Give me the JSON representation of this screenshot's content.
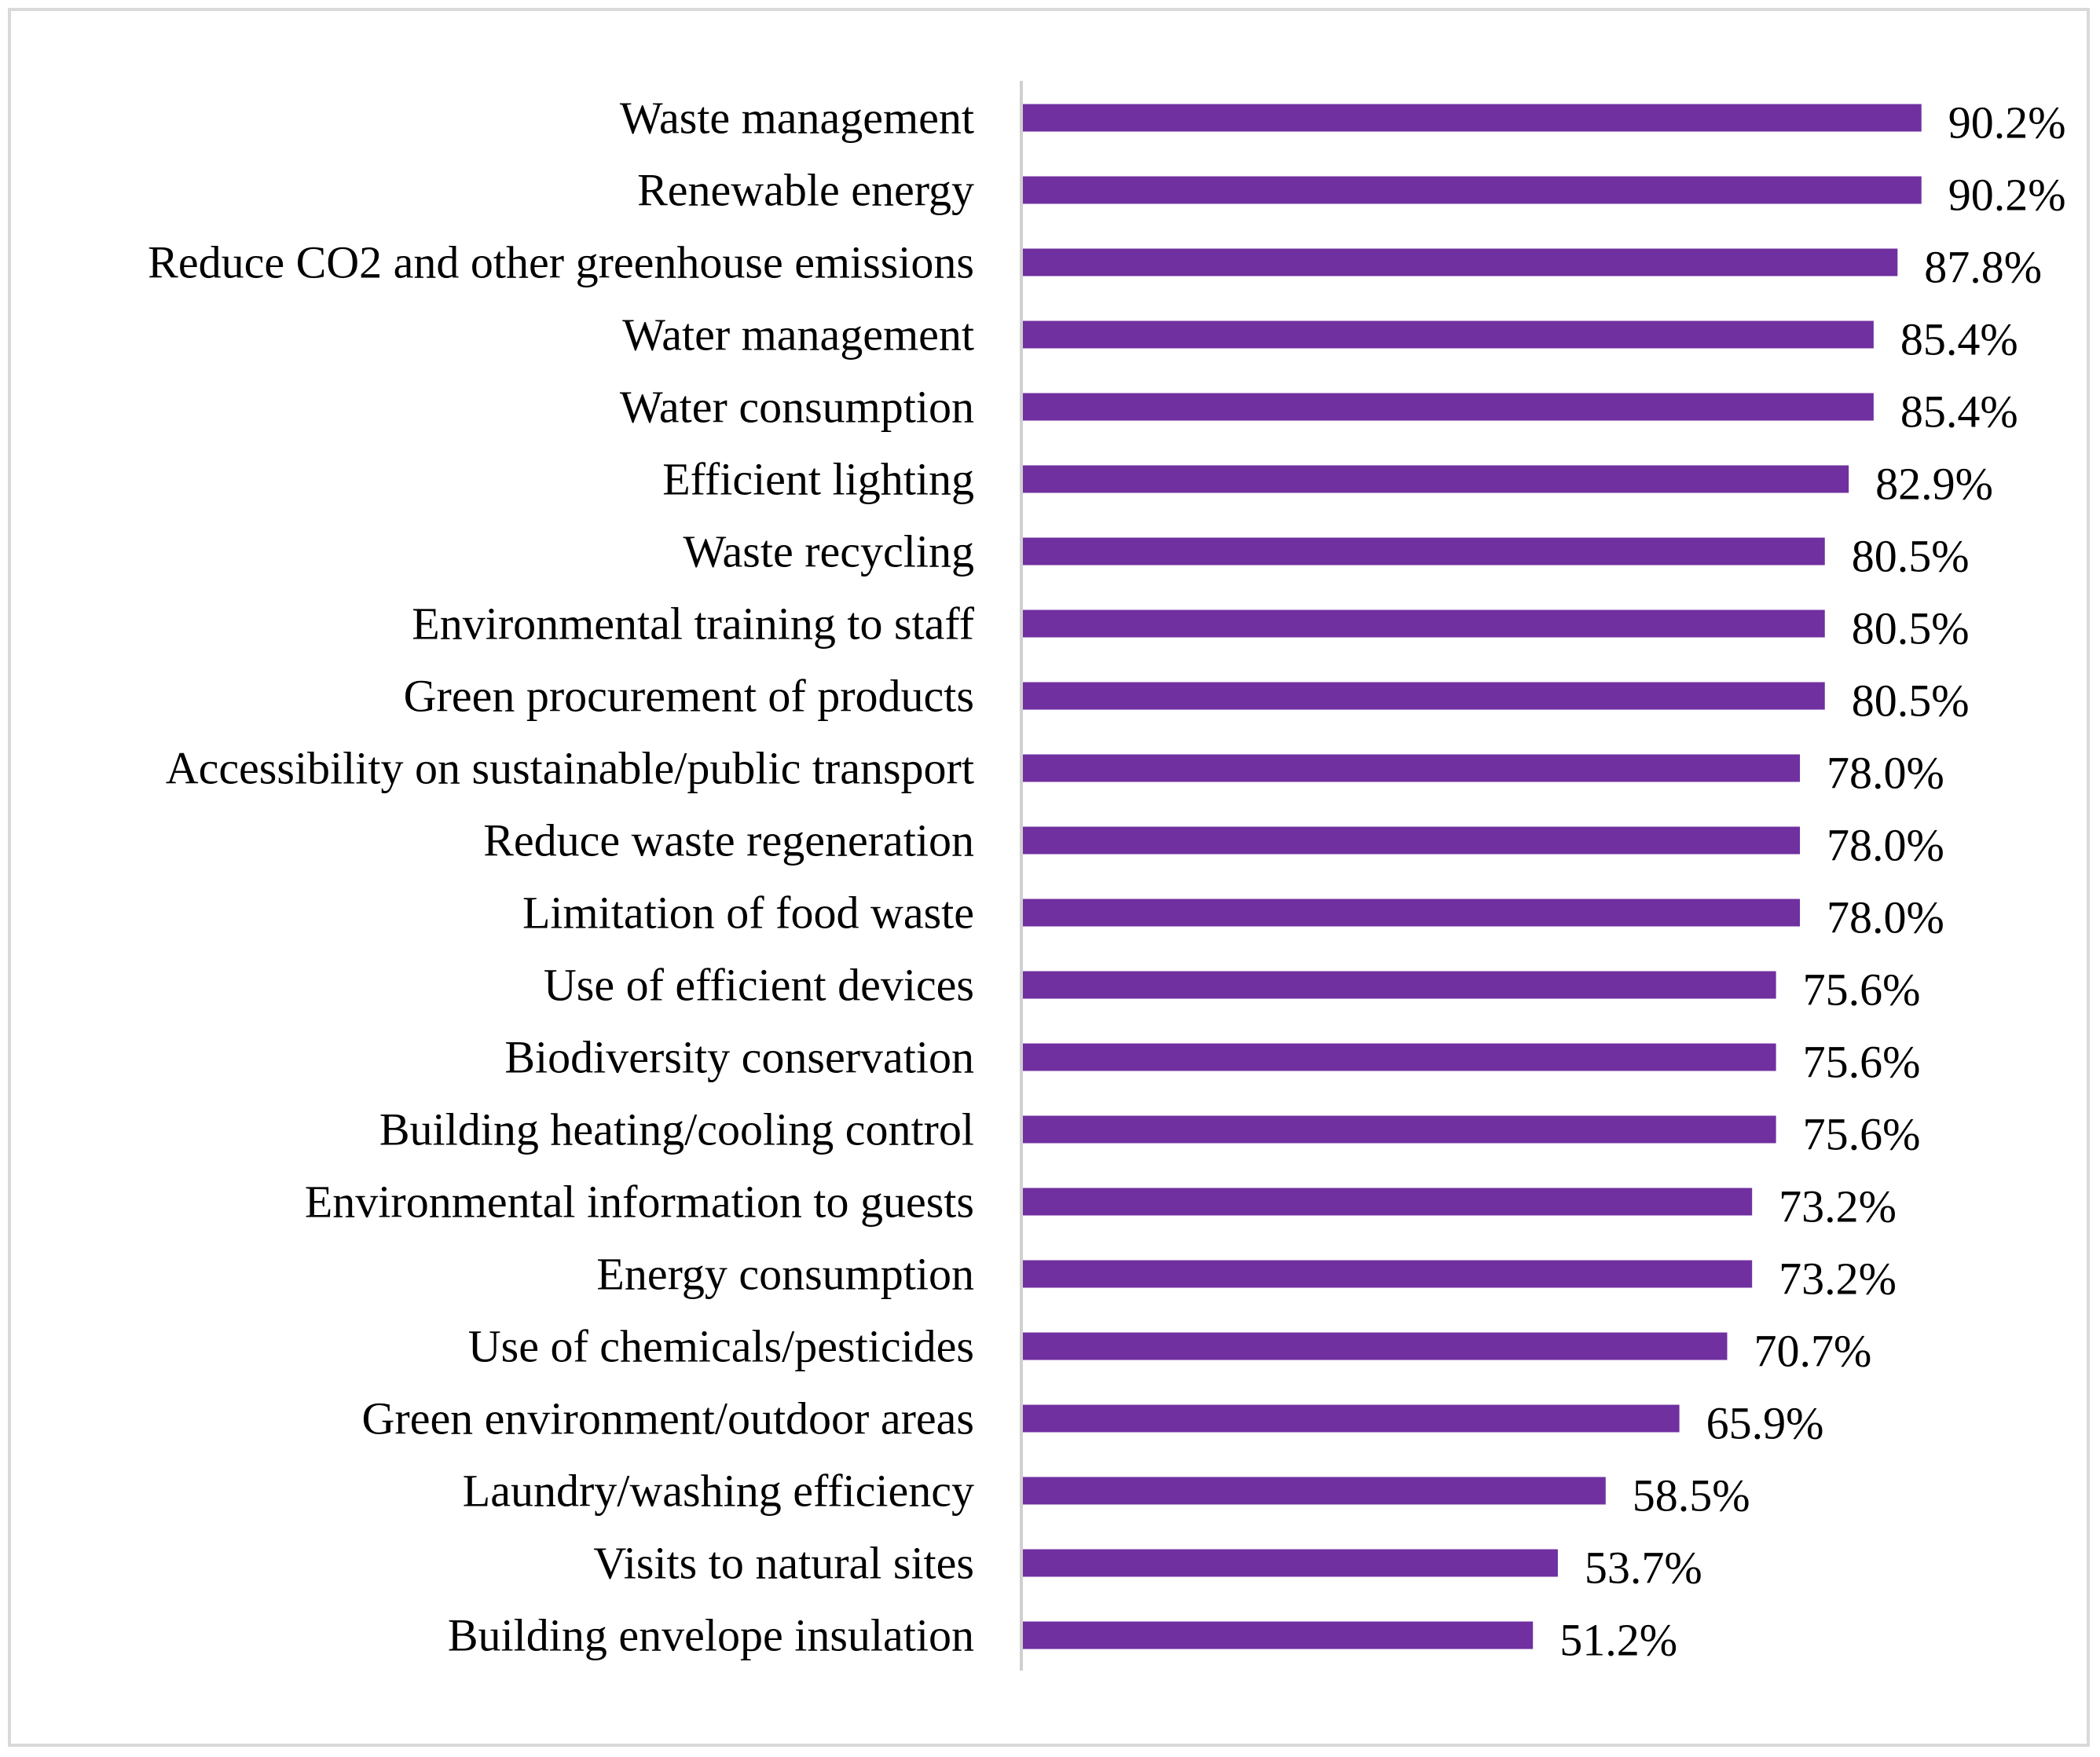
{
  "chart_data": {
    "type": "bar",
    "orientation": "horizontal",
    "title": "",
    "xlabel": "",
    "ylabel": "",
    "grid": false,
    "xlim": [
      0,
      100
    ],
    "bar_color": "#7030a0",
    "axis_color": "#d0d0d0",
    "categories": [
      "Waste management",
      "Renewable energy",
      "Reduce CO2 and other greenhouse emissions",
      "Water management",
      "Water consumption",
      "Efficient lighting",
      "Waste recycling",
      "Environmental training to staff",
      "Green procurement of products",
      "Accessibility on sustainable/public transport",
      "Reduce waste regeneration",
      "Limitation of food waste",
      "Use of efficient devices",
      "Biodiversity conservation",
      "Building heating/cooling control",
      "Environmental information to guests",
      "Energy consumption",
      "Use of chemicals/pesticides",
      "Green environment/outdoor areas",
      "Laundry/washing efficiency",
      "Visits to natural sites",
      "Building envelope insulation"
    ],
    "values": [
      90.2,
      90.2,
      87.8,
      85.4,
      85.4,
      82.9,
      80.5,
      80.5,
      80.5,
      78.0,
      78.0,
      78.0,
      75.6,
      75.6,
      75.6,
      73.2,
      73.2,
      70.7,
      65.9,
      58.5,
      53.7,
      51.2
    ],
    "value_labels": [
      "90.2%",
      "90.2%",
      "87.8%",
      "85.4%",
      "85.4%",
      "82.9%",
      "80.5%",
      "80.5%",
      "80.5%",
      "78.0%",
      "78.0%",
      "78.0%",
      "75.6%",
      "75.6%",
      "75.6%",
      "73.2%",
      "73.2%",
      "70.7%",
      "65.9%",
      "58.5%",
      "53.7%",
      "51.2%"
    ]
  }
}
